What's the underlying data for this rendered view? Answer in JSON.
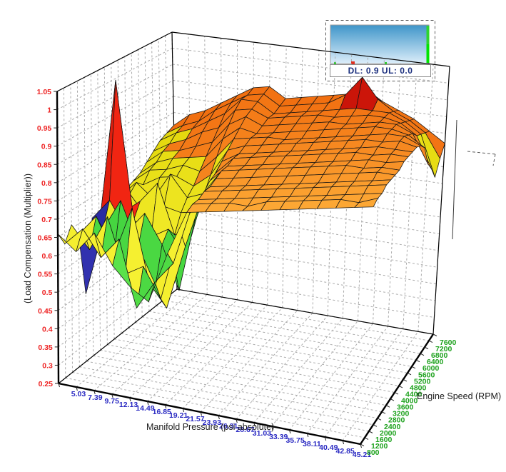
{
  "chart": {
    "x_axis": {
      "title": "Manifold Pressure (psi absolute)",
      "tick_color": "#2a2ac2",
      "ticks": [
        "5.03",
        "7.39",
        "9.75",
        "12.13",
        "14.49",
        "16.85",
        "19.21",
        "21.57",
        "23.93",
        "26.31",
        "28.67",
        "31.03",
        "33.39",
        "35.75",
        "38.11",
        "40.49",
        "42.85",
        "45.21"
      ]
    },
    "y_axis": {
      "title": "Engine Speed (RPM)",
      "tick_color": "#1ea21e",
      "ticks": [
        "800",
        "1200",
        "1600",
        "2000",
        "2400",
        "2800",
        "3200",
        "3600",
        "4000",
        "4400",
        "4800",
        "5200",
        "5600",
        "6000",
        "6400",
        "6800",
        "7200",
        "7600"
      ]
    },
    "z_axis": {
      "title": "(Load Compensation (Multiplier))",
      "tick_color": "#ee2222",
      "ticks": [
        "0.25",
        "0.3",
        "0.35",
        "0.4",
        "0.45",
        "0.5",
        "0.55",
        "0.6",
        "0.65",
        "0.7",
        "0.75",
        "0.8",
        "0.85",
        "0.9",
        "0.95",
        "1",
        "1.05"
      ],
      "range": [
        0.25,
        1.05
      ]
    }
  },
  "legend": {
    "dl_ul_text": "DL: 0.9 UL: 0.0",
    "gradient_top": "#3e95c9",
    "gradient_bottom": "#ddeefa",
    "strip_color": "#2ed52e",
    "bright_strip": "#00e400",
    "mark_red": "#e03020",
    "mark_green": "#32c832"
  },
  "chart_data": {
    "type": "surface",
    "x_label": "Manifold Pressure (psi absolute)",
    "y_label": "Engine Speed (RPM)",
    "z_label": "(Load Compensation (Multiplier))",
    "x": [
      5.03,
      7.39,
      9.75,
      12.13,
      14.49,
      16.85,
      19.21,
      21.57,
      23.93,
      26.31,
      28.67,
      31.03,
      33.39,
      35.75,
      38.11,
      40.49,
      42.85,
      45.21
    ],
    "y": [
      800,
      1200,
      1600,
      2000,
      2400,
      2800,
      3200,
      3600,
      4000,
      4400,
      4800,
      5200,
      5600,
      6000,
      6400,
      6800,
      7200,
      7600
    ],
    "z_range": [
      0.25,
      1.05
    ],
    "grid": true,
    "z_rows_by_rpm": [
      [
        0.66,
        0.62,
        0.68,
        0.6,
        0.55,
        0.52,
        0.66,
        0.78,
        0.79,
        0.8,
        0.81,
        0.82,
        0.83,
        0.84,
        0.85,
        0.86,
        0.87,
        0.88
      ],
      [
        0.62,
        0.67,
        0.6,
        0.66,
        0.48,
        0.56,
        0.62,
        0.79,
        0.8,
        0.81,
        0.81,
        0.83,
        0.84,
        0.85,
        0.86,
        0.87,
        0.87,
        0.89
      ],
      [
        0.66,
        0.6,
        0.7,
        0.55,
        0.58,
        0.5,
        0.7,
        0.79,
        0.8,
        0.81,
        0.82,
        0.83,
        0.84,
        0.85,
        0.86,
        0.87,
        0.88,
        0.89
      ],
      [
        0.62,
        0.68,
        0.58,
        0.72,
        0.52,
        0.46,
        0.64,
        0.8,
        0.81,
        0.82,
        0.83,
        0.84,
        0.85,
        0.86,
        0.87,
        0.88,
        0.89,
        0.9
      ],
      [
        0.44,
        0.63,
        0.72,
        0.6,
        0.5,
        0.58,
        0.7,
        0.8,
        0.81,
        0.82,
        0.83,
        0.84,
        0.85,
        0.86,
        0.87,
        0.88,
        0.89,
        0.9
      ],
      [
        0.64,
        0.7,
        0.62,
        0.68,
        0.6,
        0.48,
        0.72,
        0.81,
        0.82,
        0.83,
        0.84,
        0.85,
        0.86,
        0.87,
        0.88,
        0.89,
        0.9,
        0.9
      ],
      [
        0.6,
        1.03,
        0.64,
        0.6,
        0.63,
        0.56,
        0.75,
        0.82,
        0.83,
        0.84,
        0.85,
        0.86,
        0.87,
        0.88,
        0.89,
        0.89,
        0.9,
        0.9
      ],
      [
        0.66,
        0.64,
        0.68,
        0.74,
        0.6,
        0.62,
        0.77,
        0.82,
        0.83,
        0.84,
        0.85,
        0.86,
        0.87,
        0.88,
        0.89,
        0.9,
        0.9,
        0.91
      ],
      [
        0.63,
        0.68,
        0.62,
        0.66,
        0.65,
        0.66,
        0.78,
        0.83,
        0.84,
        0.85,
        0.86,
        0.87,
        0.88,
        0.89,
        0.9,
        0.9,
        0.91,
        0.91
      ],
      [
        0.65,
        0.7,
        0.66,
        0.74,
        0.68,
        0.7,
        0.8,
        0.83,
        0.84,
        0.85,
        0.86,
        0.87,
        0.88,
        0.89,
        0.9,
        0.91,
        0.91,
        0.91
      ],
      [
        0.66,
        0.68,
        0.71,
        0.72,
        0.7,
        0.74,
        0.82,
        0.84,
        0.85,
        0.86,
        0.87,
        0.88,
        0.89,
        0.9,
        0.91,
        0.91,
        0.92,
        0.91
      ],
      [
        0.67,
        0.71,
        0.72,
        0.74,
        0.73,
        0.78,
        0.84,
        0.85,
        0.86,
        0.86,
        0.87,
        0.88,
        0.89,
        0.9,
        0.91,
        0.92,
        0.92,
        0.9
      ],
      [
        0.68,
        0.72,
        0.74,
        0.75,
        0.76,
        0.82,
        0.86,
        0.85,
        0.86,
        0.87,
        0.88,
        0.89,
        0.9,
        0.91,
        0.92,
        0.92,
        0.91,
        0.88
      ],
      [
        0.7,
        0.74,
        0.75,
        0.77,
        0.79,
        0.85,
        0.88,
        0.86,
        0.87,
        0.88,
        0.89,
        0.9,
        0.9,
        0.91,
        0.92,
        0.92,
        0.9,
        0.82
      ],
      [
        0.72,
        0.75,
        0.77,
        0.8,
        0.82,
        0.88,
        0.89,
        0.87,
        0.88,
        0.89,
        0.9,
        0.9,
        0.91,
        0.92,
        0.92,
        0.91,
        0.88,
        0.79
      ],
      [
        0.74,
        0.77,
        0.79,
        0.82,
        0.85,
        0.9,
        0.9,
        0.87,
        0.88,
        0.89,
        0.9,
        0.91,
        0.92,
        0.92,
        0.92,
        0.9,
        0.87,
        0.75
      ],
      [
        0.75,
        0.78,
        0.8,
        0.84,
        0.87,
        0.9,
        0.91,
        0.88,
        0.89,
        0.9,
        0.91,
        0.94,
        1.0,
        0.94,
        0.91,
        0.89,
        0.86,
        0.79
      ],
      [
        0.76,
        0.8,
        0.82,
        0.85,
        0.88,
        0.91,
        0.92,
        0.89,
        0.9,
        0.91,
        0.92,
        0.93,
        0.95,
        0.92,
        0.9,
        0.88,
        0.85,
        0.82
      ]
    ],
    "color_bands": [
      {
        "max": 0.45,
        "name": "navy",
        "light": "#3434b4",
        "dark": "#15157a"
      },
      {
        "max": 0.6,
        "name": "green",
        "light": "#5ae24a",
        "dark": "#0fb125"
      },
      {
        "max": 0.76,
        "name": "yellow",
        "light": "#f9f537",
        "dark": "#ddcf00"
      },
      {
        "max": 0.945,
        "name": "orange",
        "light": "#ffb43c",
        "dark": "#ee5f06"
      },
      {
        "max": 9,
        "name": "red",
        "light": "#f52713",
        "dark": "#bd0f06"
      }
    ]
  }
}
